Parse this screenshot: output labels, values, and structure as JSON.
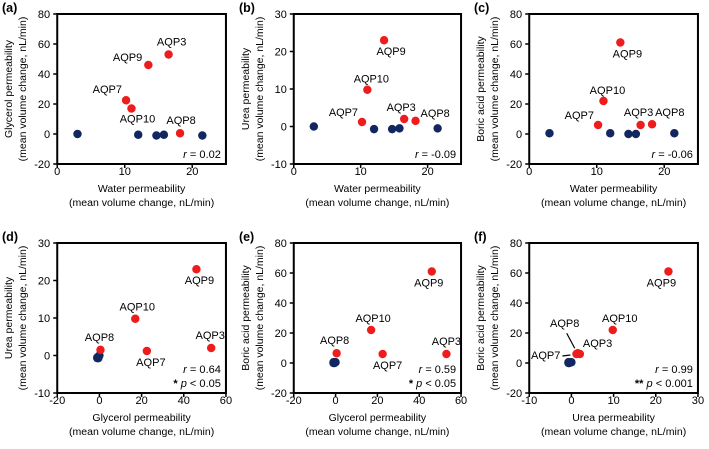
{
  "figure": {
    "colors": {
      "permeable_red": "#ee1c1c",
      "non_permeable_navy": "#12275f",
      "frame": "#000000",
      "text": "#000000",
      "background": "#ffffff"
    }
  },
  "chart_data": [
    {
      "id": "a",
      "tag": "(a)",
      "type": "scatter",
      "xlabel": [
        "Water permeability",
        "(mean volume change, nL/min)"
      ],
      "ylabel": [
        "Glycerol permeability",
        "(mean volume change, nL/min)"
      ],
      "xlim": [
        0,
        25
      ],
      "xticks": [
        0,
        10,
        20
      ],
      "ylim": [
        -20,
        80
      ],
      "yticks": [
        -20,
        0,
        20,
        40,
        60,
        80
      ],
      "grid": false,
      "annotation": [
        {
          "pre": "",
          "var": "r",
          "post": " = 0.02"
        }
      ],
      "series": [
        {
          "name": "non_permeable",
          "color": "#12275f",
          "points": [
            {
              "x": 3,
              "y": 0
            },
            {
              "x": 12,
              "y": -0.5
            },
            {
              "x": 14.7,
              "y": -1
            },
            {
              "x": 15.8,
              "y": -0.5
            },
            {
              "x": 21.5,
              "y": -1
            }
          ]
        },
        {
          "name": "permeable",
          "color": "#ee1c1c",
          "points": [
            {
              "label": "AQP9",
              "x": 13.5,
              "y": 46,
              "anchor": "end",
              "dx": -6,
              "dy": -4
            },
            {
              "label": "AQP3",
              "x": 16.5,
              "y": 53,
              "anchor": "middle",
              "dx": 3,
              "dy": -9
            },
            {
              "label": "AQP7",
              "x": 10.2,
              "y": 22.5,
              "anchor": "end",
              "dx": -4,
              "dy": -7
            },
            {
              "label": "AQP10",
              "x": 11,
              "y": 17,
              "anchor": "middle",
              "dx": 6,
              "dy": 14
            },
            {
              "label": "AQP8",
              "x": 18.2,
              "y": 0.5,
              "anchor": "middle",
              "dx": 1,
              "dy": -9
            }
          ]
        }
      ]
    },
    {
      "id": "b",
      "tag": "(b)",
      "type": "scatter",
      "xlabel": [
        "Water permeability",
        "(mean volume change, nL/min)"
      ],
      "ylabel": [
        "Urea permeability",
        "(mean volume change, nL/min)"
      ],
      "xlim": [
        0,
        25
      ],
      "xticks": [
        0,
        10,
        20
      ],
      "ylim": [
        -10,
        30
      ],
      "yticks": [
        -10,
        0,
        10,
        20,
        30
      ],
      "grid": false,
      "annotation": [
        {
          "pre": "",
          "var": "r",
          "post": " = -0.09"
        }
      ],
      "series": [
        {
          "name": "non_permeable",
          "color": "#12275f",
          "points": [
            {
              "x": 3,
              "y": 0
            },
            {
              "x": 12,
              "y": -0.7
            },
            {
              "x": 14.7,
              "y": -0.7
            },
            {
              "x": 15.8,
              "y": -0.5
            },
            {
              "x": 21.5,
              "y": -0.5
            }
          ]
        },
        {
          "name": "permeable",
          "color": "#ee1c1c",
          "points": [
            {
              "label": "AQP9",
              "x": 13.5,
              "y": 23,
              "anchor": "middle",
              "dx": 7,
              "dy": 15
            },
            {
              "label": "AQP10",
              "x": 11,
              "y": 9.8,
              "anchor": "middle",
              "dx": 4,
              "dy": -7
            },
            {
              "label": "AQP7",
              "x": 10.2,
              "y": 1.2,
              "anchor": "end",
              "dx": -4,
              "dy": -6
            },
            {
              "label": "AQP3",
              "x": 16.5,
              "y": 2,
              "anchor": "middle",
              "dx": -3,
              "dy": -8
            },
            {
              "label": "AQP8",
              "x": 18.2,
              "y": 1.5,
              "anchor": "start",
              "dx": 5,
              "dy": -4
            }
          ]
        }
      ]
    },
    {
      "id": "c",
      "tag": "(c)",
      "type": "scatter",
      "xlabel": [
        "Water permeability",
        "(mean volume change, nL/min)"
      ],
      "ylabel": [
        "Boric acid permeability",
        "(mean volume change, nL/min)"
      ],
      "xlim": [
        0,
        25
      ],
      "xticks": [
        0,
        10,
        20
      ],
      "ylim": [
        -20,
        80
      ],
      "yticks": [
        -20,
        0,
        20,
        40,
        60,
        80
      ],
      "grid": false,
      "annotation": [
        {
          "pre": "",
          "var": "r",
          "post": " = -0.06"
        }
      ],
      "series": [
        {
          "name": "non_permeable",
          "color": "#12275f",
          "points": [
            {
              "x": 3,
              "y": 0.5
            },
            {
              "x": 12,
              "y": 0.5
            },
            {
              "x": 14.7,
              "y": 0
            },
            {
              "x": 15.8,
              "y": 0
            },
            {
              "x": 21.5,
              "y": 0.5
            }
          ]
        },
        {
          "name": "permeable",
          "color": "#ee1c1c",
          "points": [
            {
              "label": "AQP9",
              "x": 13.5,
              "y": 61,
              "anchor": "middle",
              "dx": 7,
              "dy": 15
            },
            {
              "label": "AQP10",
              "x": 11,
              "y": 22,
              "anchor": "middle",
              "dx": 4,
              "dy": -7
            },
            {
              "label": "AQP7",
              "x": 10.2,
              "y": 6,
              "anchor": "end",
              "dx": -4,
              "dy": -6
            },
            {
              "label": "AQP3",
              "x": 16.5,
              "y": 6,
              "anchor": "middle",
              "dx": -2,
              "dy": -9
            },
            {
              "label": "AQP8",
              "x": 18.2,
              "y": 6.5,
              "anchor": "start",
              "dx": 3,
              "dy": -8
            }
          ]
        }
      ]
    },
    {
      "id": "d",
      "tag": "(d)",
      "type": "scatter",
      "xlabel": [
        "Glycerol permeability",
        "(mean volume change, nL/min)"
      ],
      "ylabel": [
        "Urea permeability",
        "(mean volume change, nL/min)"
      ],
      "xlim": [
        -20,
        60
      ],
      "xticks": [
        -20,
        0,
        20,
        40,
        60
      ],
      "ylim": [
        -10,
        30
      ],
      "yticks": [
        -10,
        0,
        10,
        20,
        30
      ],
      "grid": false,
      "annotation": [
        {
          "pre": "",
          "var": "r",
          "post": " = 0.64"
        },
        {
          "pre": "* ",
          "var": "p",
          "post": " < 0.05"
        }
      ],
      "series": [
        {
          "name": "non_permeable",
          "color": "#12275f",
          "points": [
            {
              "x": 0,
              "y": 0
            },
            {
              "x": -0.5,
              "y": -0.7
            },
            {
              "x": -1,
              "y": -0.7
            },
            {
              "x": -0.5,
              "y": -0.5
            },
            {
              "x": -1,
              "y": -0.5
            }
          ]
        },
        {
          "name": "permeable",
          "color": "#ee1c1c",
          "points": [
            {
              "label": "AQP9",
              "x": 46,
              "y": 23,
              "anchor": "middle",
              "dx": 3,
              "dy": 15
            },
            {
              "label": "AQP10",
              "x": 17,
              "y": 9.8,
              "anchor": "middle",
              "dx": 2,
              "dy": -8
            },
            {
              "label": "AQP8",
              "x": 0.5,
              "y": 1.5,
              "anchor": "middle",
              "dx": -1,
              "dy": -9
            },
            {
              "label": "AQP7",
              "x": 22.5,
              "y": 1.2,
              "anchor": "middle",
              "dx": 4,
              "dy": 15
            },
            {
              "label": "AQP3",
              "x": 53,
              "y": 2,
              "anchor": "middle",
              "dx": -1,
              "dy": -9
            }
          ]
        }
      ]
    },
    {
      "id": "e",
      "tag": "(e)",
      "type": "scatter",
      "xlabel": [
        "Glycerol permeability",
        "(mean volume change, nL/min)"
      ],
      "ylabel": [
        "Boric acid permeability",
        "(mean volume change, nL/min)"
      ],
      "xlim": [
        -20,
        60
      ],
      "xticks": [
        -20,
        0,
        20,
        40,
        60
      ],
      "ylim": [
        -20,
        80
      ],
      "yticks": [
        -20,
        0,
        20,
        40,
        60,
        80
      ],
      "grid": false,
      "annotation": [
        {
          "pre": "",
          "var": "r",
          "post": " = 0.59"
        },
        {
          "pre": "* ",
          "var": "p",
          "post": " < 0.05"
        }
      ],
      "series": [
        {
          "name": "non_permeable",
          "color": "#12275f",
          "points": [
            {
              "x": 0,
              "y": 0.5
            },
            {
              "x": -0.5,
              "y": 0.5
            },
            {
              "x": -1,
              "y": 0
            },
            {
              "x": -0.5,
              "y": 0
            },
            {
              "x": -1,
              "y": 0.5
            }
          ]
        },
        {
          "name": "permeable",
          "color": "#ee1c1c",
          "points": [
            {
              "label": "AQP9",
              "x": 46,
              "y": 61,
              "anchor": "middle",
              "dx": -3,
              "dy": 15
            },
            {
              "label": "AQP10",
              "x": 17,
              "y": 22,
              "anchor": "middle",
              "dx": 2,
              "dy": -8
            },
            {
              "label": "AQP8",
              "x": 0.5,
              "y": 6.5,
              "anchor": "middle",
              "dx": -2,
              "dy": -9
            },
            {
              "label": "AQP7",
              "x": 22.5,
              "y": 6,
              "anchor": "middle",
              "dx": 5,
              "dy": 15
            },
            {
              "label": "AQP3",
              "x": 53,
              "y": 6,
              "anchor": "middle",
              "dx": 0,
              "dy": -9
            }
          ]
        }
      ]
    },
    {
      "id": "f",
      "tag": "(f)",
      "type": "scatter",
      "xlabel": [
        "Urea permeability",
        "(mean volume change, nL/min)"
      ],
      "ylabel": [
        "Boric acid permeability",
        "(mean volume change, nL/min)"
      ],
      "xlim": [
        -10,
        30
      ],
      "xticks": [
        -10,
        0,
        10,
        20,
        30
      ],
      "ylim": [
        -20,
        80
      ],
      "yticks": [
        -20,
        0,
        20,
        40,
        60,
        80
      ],
      "grid": false,
      "annotation": [
        {
          "pre": "",
          "var": "r",
          "post": " = 0.99"
        },
        {
          "pre": "** ",
          "var": "p",
          "post": " < 0.001"
        }
      ],
      "series": [
        {
          "name": "non_permeable",
          "color": "#12275f",
          "points": [
            {
              "x": 0,
              "y": 0.5
            },
            {
              "x": -0.7,
              "y": 0.5
            },
            {
              "x": -0.7,
              "y": 0
            },
            {
              "x": -0.5,
              "y": 0
            },
            {
              "x": -0.5,
              "y": 0.5
            }
          ]
        },
        {
          "name": "permeable",
          "color": "#ee1c1c",
          "points": [
            {
              "label": "AQP9",
              "x": 23,
              "y": 61,
              "anchor": "middle",
              "dx": -7,
              "dy": 15
            },
            {
              "label": "AQP10",
              "x": 9.8,
              "y": 22,
              "anchor": "middle",
              "dx": 7,
              "dy": -8
            },
            {
              "label": "AQP8",
              "x": 1.5,
              "y": 6.5,
              "anchor": "middle",
              "dx": -13,
              "dy": -26,
              "leader": [
                -11,
                -20,
                -3,
                -5
              ]
            },
            {
              "label": "AQP3",
              "x": 2,
              "y": 6,
              "anchor": "start",
              "dx": 3,
              "dy": -7
            },
            {
              "label": "AQP7",
              "x": 1.2,
              "y": 6,
              "anchor": "end",
              "dx": -16,
              "dy": 5,
              "leader": [
                -14,
                2,
                -6,
                1
              ]
            }
          ]
        }
      ]
    }
  ]
}
